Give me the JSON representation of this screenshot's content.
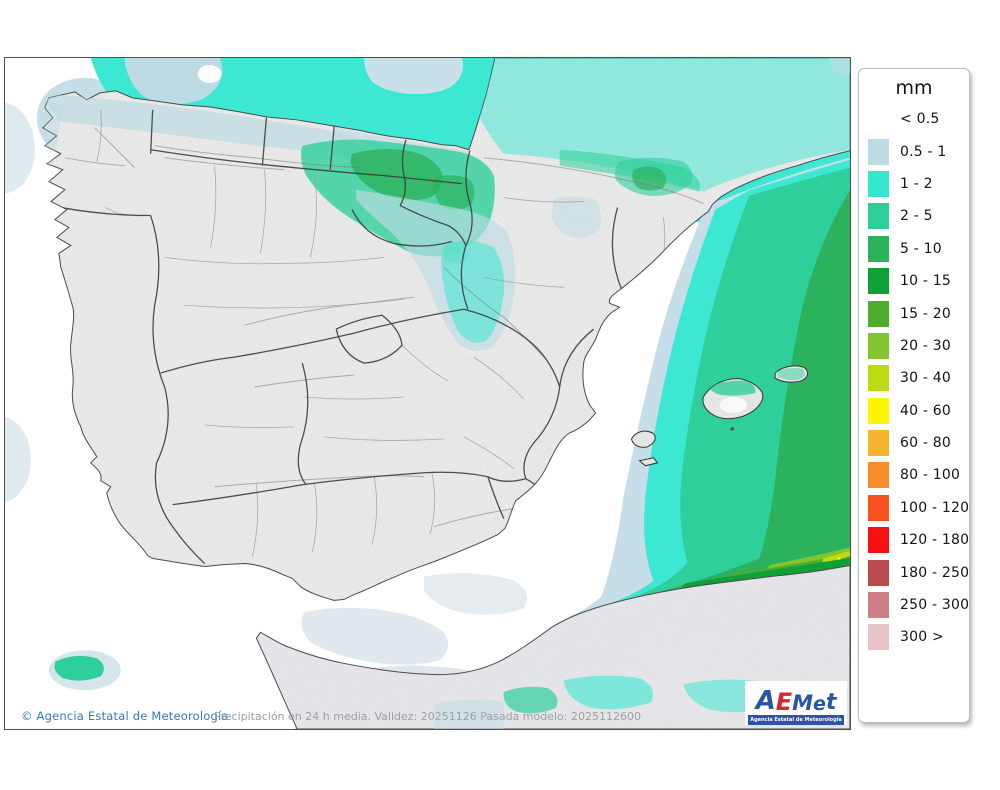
{
  "legend": {
    "title": "mm",
    "rows": [
      {
        "label": "< 0.5",
        "color": null
      },
      {
        "label": "0.5 - 1",
        "color": "#bddbe3"
      },
      {
        "label": "1 - 2",
        "color": "#35e7cd"
      },
      {
        "label": "2 - 5",
        "color": "#2fcf9b"
      },
      {
        "label": "5 - 10",
        "color": "#2cb25c"
      },
      {
        "label": "10 - 15",
        "color": "#0fa135"
      },
      {
        "label": "15 - 20",
        "color": "#4cae2a"
      },
      {
        "label": "20 - 30",
        "color": "#82c52e"
      },
      {
        "label": "30 - 40",
        "color": "#bcdb13"
      },
      {
        "label": "40 - 60",
        "color": "#fdf500"
      },
      {
        "label": "60 - 80",
        "color": "#f8b62e"
      },
      {
        "label": "80 - 100",
        "color": "#f78c28"
      },
      {
        "label": "100 - 120",
        "color": "#f7511f"
      },
      {
        "label": "120 - 180",
        "color": "#f7100f"
      },
      {
        "label": "180 - 250",
        "color": "#b94a4e"
      },
      {
        "label": "250 - 300",
        "color": "#ce8086"
      },
      {
        "label": "300 >",
        "color": "#e7c4c8"
      }
    ]
  },
  "footer": {
    "copyright": "© Agencia Estatal de Meteorología",
    "caption": "Precipitación en 24 h media. Validez: 20251126 Pasada modelo: 2025112600"
  },
  "logo": {
    "letters": [
      {
        "ch": "A",
        "color": "#2a55a5"
      },
      {
        "ch": "E",
        "color": "#d7282f"
      },
      {
        "ch": "M",
        "color": "#2a55a5"
      },
      {
        "ch": "e",
        "color": "#2a55a5"
      },
      {
        "ch": "t",
        "color": "#2a55a5"
      }
    ],
    "subtitle": "Agencia Estatal de Meteorología",
    "bar_color": "#2a55a5"
  },
  "map": {
    "region": "Iberian Peninsula and Balearic Islands",
    "sea_color": "#ffffff",
    "land_color": "#ececec",
    "africa_land_color": "#e9e9ed",
    "boundary_color": "#3c3c3c",
    "province_boundary_color": "#9e9e9e"
  }
}
